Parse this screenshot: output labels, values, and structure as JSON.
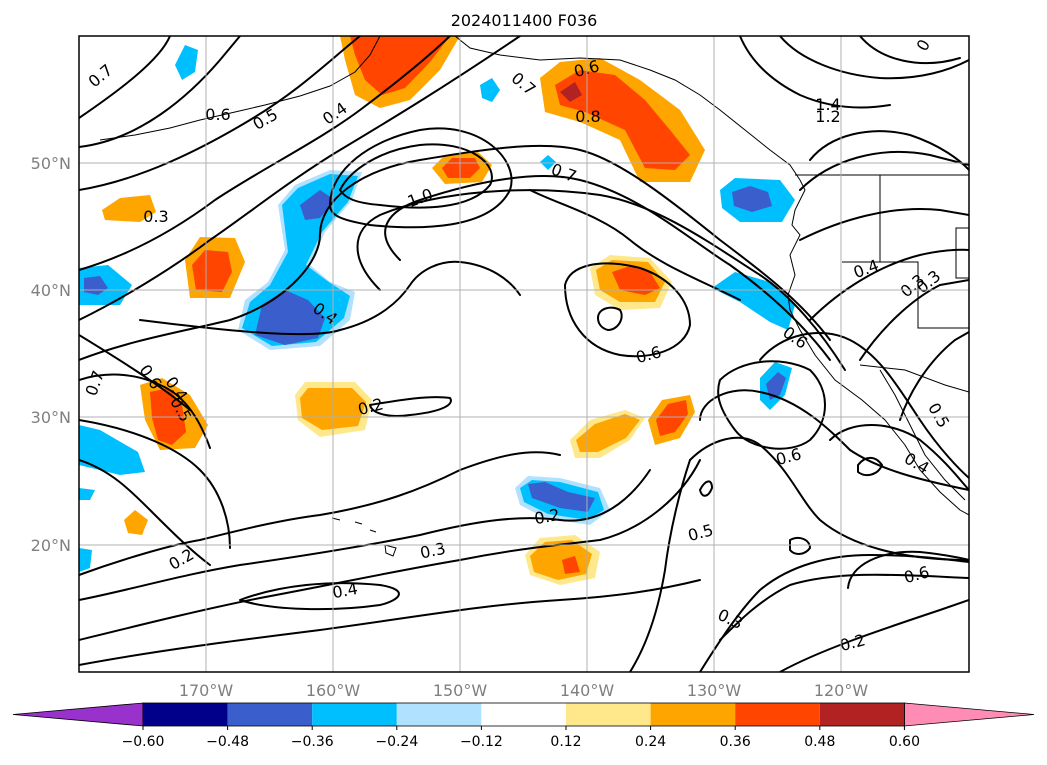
{
  "title": "2024011400 F036",
  "latitude_labels": [
    "50°N",
    "40°N",
    "30°N",
    "20°N"
  ],
  "longitude_labels": [
    "170°W",
    "160°W",
    "150°W",
    "140°W",
    "130°W",
    "120°W"
  ],
  "colorbar": {
    "tick_labels": [
      "−0.60",
      "−0.48",
      "−0.36",
      "−0.24",
      "−0.12",
      "0.12",
      "0.24",
      "0.36",
      "0.48",
      "0.60"
    ],
    "colors": [
      "#9932cc",
      "#00008b",
      "#3a5fcd",
      "#00bfff",
      "#b0e2ff",
      "#ffffff",
      "#ffe88c",
      "#ffa500",
      "#ff4500",
      "#b22222",
      "#ff8cb4"
    ]
  },
  "contour_labels": [
    "0.7",
    "0.6",
    "0.5",
    "0.4",
    "0.3",
    "0.7",
    "0.6",
    "0.8",
    "1.0",
    "0.7",
    "0.4",
    "0.6",
    "0.2",
    "0.7",
    "0.6",
    "0.5",
    "0.4",
    "0.3",
    "0.2",
    "0.3",
    "0.4",
    "0.2",
    "0.5",
    "0.6",
    "0.6",
    "0.4",
    "0.5",
    "0.3",
    "0.2",
    "0.6",
    "1.4",
    "1.2",
    "0.4",
    "0.3",
    "0"
  ]
}
